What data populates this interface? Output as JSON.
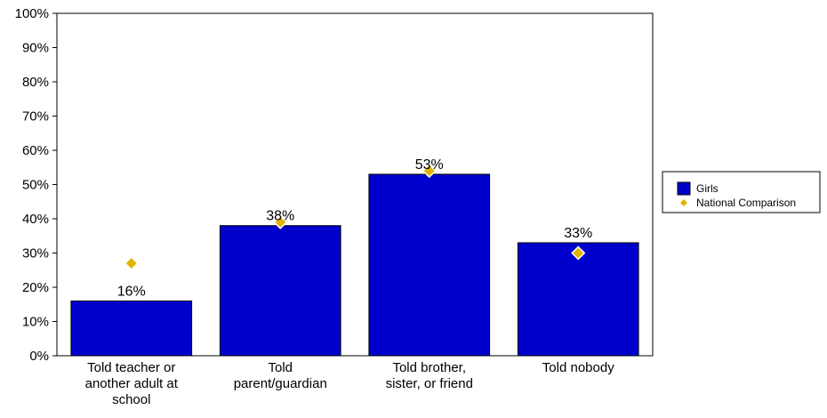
{
  "chart_data": {
    "type": "bar",
    "categories": [
      "Told teacher or another adult at school",
      "Told parent/guardian",
      "Told brother, sister, or friend",
      "Told nobody"
    ],
    "category_lines": [
      [
        "Told teacher or",
        "another adult at",
        "school"
      ],
      [
        "Told",
        "parent/guardian"
      ],
      [
        "Told brother,",
        "sister, or friend"
      ],
      [
        "Told nobody"
      ]
    ],
    "series": [
      {
        "name": "Girls",
        "type": "bar",
        "values": [
          16,
          38,
          53,
          33
        ],
        "labels": [
          "16%",
          "38%",
          "53%",
          "33%"
        ],
        "color": "#0000cc"
      },
      {
        "name": "National Comparison",
        "type": "scatter",
        "marker": "diamond",
        "values": [
          27,
          39,
          54,
          30
        ],
        "color": "#e0b400"
      }
    ],
    "ylim": [
      0,
      100
    ],
    "yticks": [
      "0%",
      "10%",
      "20%",
      "30%",
      "40%",
      "50%",
      "60%",
      "70%",
      "80%",
      "90%",
      "100%"
    ],
    "title": "",
    "xlabel": "",
    "ylabel": "",
    "grid": false,
    "legend": {
      "placement": "right"
    }
  }
}
